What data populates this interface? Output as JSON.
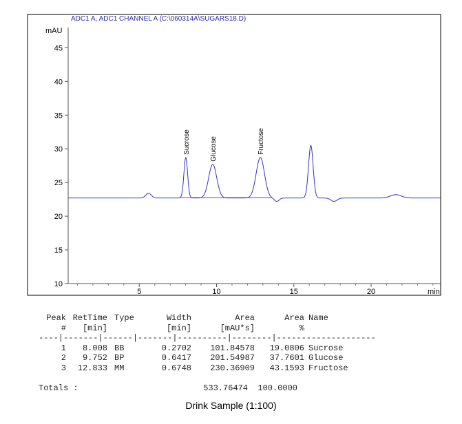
{
  "chart_data": {
    "type": "line",
    "header": "ADC1 A, ADC1 CHANNEL A (C:\\060314A\\SUGARS18.D)",
    "ylabel": "mAU",
    "xlabel": "min",
    "xlim": [
      0.4,
      24.5
    ],
    "ylim": [
      10,
      48
    ],
    "x_ticks": [
      5,
      10,
      15,
      20
    ],
    "y_ticks": [
      10,
      15,
      20,
      25,
      30,
      35,
      40,
      45
    ],
    "trace": {
      "baseline": 22.7,
      "peaks": [
        {
          "x": 5.6,
          "h": 0.7,
          "w": 0.18
        },
        {
          "x": 8.008,
          "h": 6.0,
          "w": 0.12
        },
        {
          "x": 9.752,
          "h": 5.0,
          "w": 0.26
        },
        {
          "x": 12.833,
          "h": 6.0,
          "w": 0.27
        },
        {
          "x": 16.1,
          "h": 7.8,
          "w": 0.15
        },
        {
          "x": 21.6,
          "h": 0.5,
          "w": 0.35
        }
      ],
      "dips": [
        {
          "x": 13.9,
          "d": 0.5,
          "w": 0.15
        },
        {
          "x": 17.6,
          "d": 0.5,
          "w": 0.2
        }
      ]
    },
    "peak_labels": [
      {
        "x": 8.008,
        "label": "Sucrose"
      },
      {
        "x": 9.752,
        "label": "Glucose"
      },
      {
        "x": 12.833,
        "label": "Fructose"
      }
    ],
    "integration_baseline": {
      "from": 7.6,
      "to": 13.6,
      "y": 22.75,
      "color": "#e000c0"
    },
    "trace_color": "#3030d0"
  },
  "report": {
    "headers": [
      {
        "peak": "Peak",
        "rt": "RetTime",
        "type": "Type",
        "width": "Width",
        "area": "Area",
        "pct": "Area",
        "name": "Name"
      },
      {
        "peak": "#",
        "rt": "[min]",
        "type": "",
        "width": "[min]",
        "area": "[mAU*s]",
        "pct": "%",
        "name": ""
      }
    ],
    "divider": "----|-------|------|-------|----------|--------|--------------------",
    "rows": [
      {
        "peak": "1",
        "rt": "8.008",
        "type": "BB",
        "width": "0.2702",
        "area": "101.84578",
        "pct": "19.0806",
        "name": "Sucrose"
      },
      {
        "peak": "2",
        "rt": "9.752",
        "type": "BP",
        "width": "0.6417",
        "area": "201.54987",
        "pct": "37.7601",
        "name": "Glucose"
      },
      {
        "peak": "3",
        "rt": "12.833",
        "type": "MM",
        "width": "0.6748",
        "area": "230.36909",
        "pct": "43.1593",
        "name": "Fructose"
      }
    ],
    "totals": {
      "label": "Totals :",
      "area": "533.76474",
      "pct": "100.0000"
    }
  },
  "caption": "Drink Sample (1:100)"
}
